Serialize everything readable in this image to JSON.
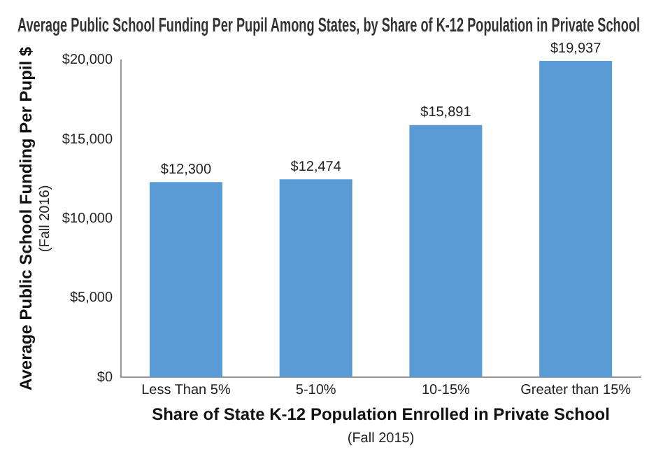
{
  "chart_data": {
    "type": "bar",
    "title": "Average Public School Funding Per Pupil Among States, by Share of K-12 Population in Private School",
    "xlabel": "Share of State K-12 Population Enrolled in Private School",
    "ylabel": "Average Public School Funding Per Pupil $",
    "annotations": [
      "(Fall 2016)",
      "(Fall 2015)"
    ],
    "categories": [
      "Less Than 5%",
      "5-10%",
      "10-15%",
      "Greater than 15%"
    ],
    "values": [
      12300,
      12474,
      15891,
      19937
    ],
    "color": "#5b9bd5",
    "value_labels": [
      "$12,300",
      "$12,474",
      "$15,891",
      "$19,937"
    ],
    "ylim": [
      0,
      20000
    ],
    "yticks": [
      {
        "value": 0,
        "label": "$0"
      },
      {
        "value": 5000,
        "label": "$5,000"
      },
      {
        "value": 10000,
        "label": "$10,000"
      },
      {
        "value": 15000,
        "label": "$15,000"
      },
      {
        "value": 20000,
        "label": "$20,000"
      }
    ],
    "grid": false,
    "legend": false
  }
}
